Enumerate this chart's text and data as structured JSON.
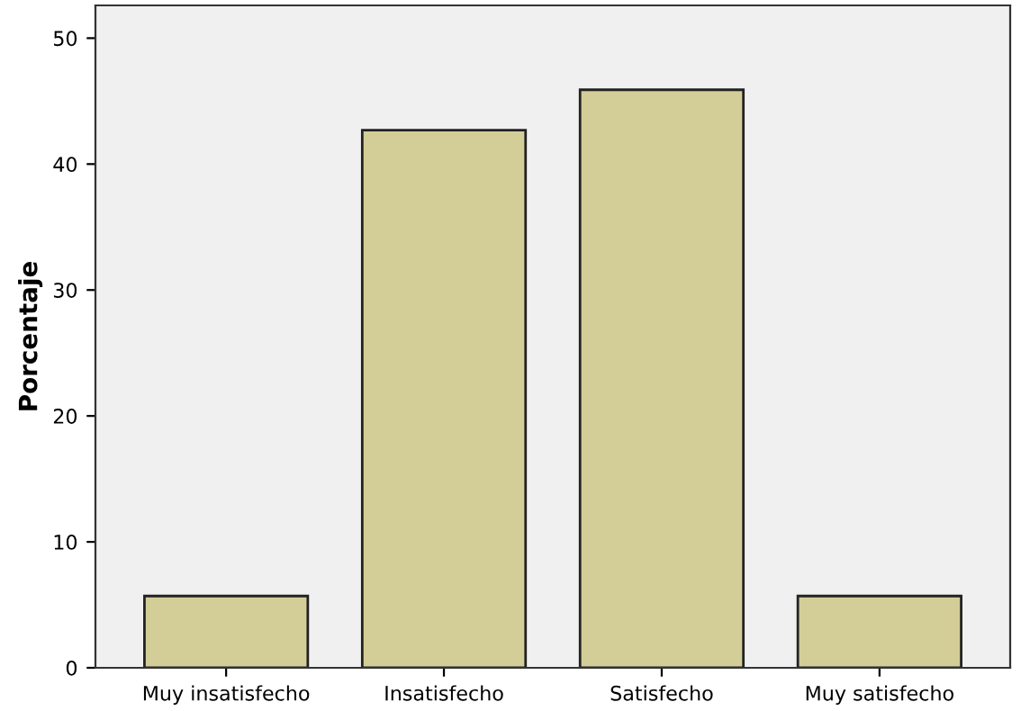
{
  "chart_data": {
    "type": "bar",
    "ylabel": "Porcentaje",
    "categories": [
      "Muy insatisfecho",
      "Insatisfecho",
      "Satisfecho",
      "Muy satisfecho"
    ],
    "values": [
      5.7,
      42.7,
      45.9,
      5.7
    ],
    "color": "#d3ce97",
    "ylim": [
      0,
      52.6
    ],
    "yticks": [
      0,
      10,
      20,
      30,
      40,
      50
    ],
    "grid": false
  }
}
